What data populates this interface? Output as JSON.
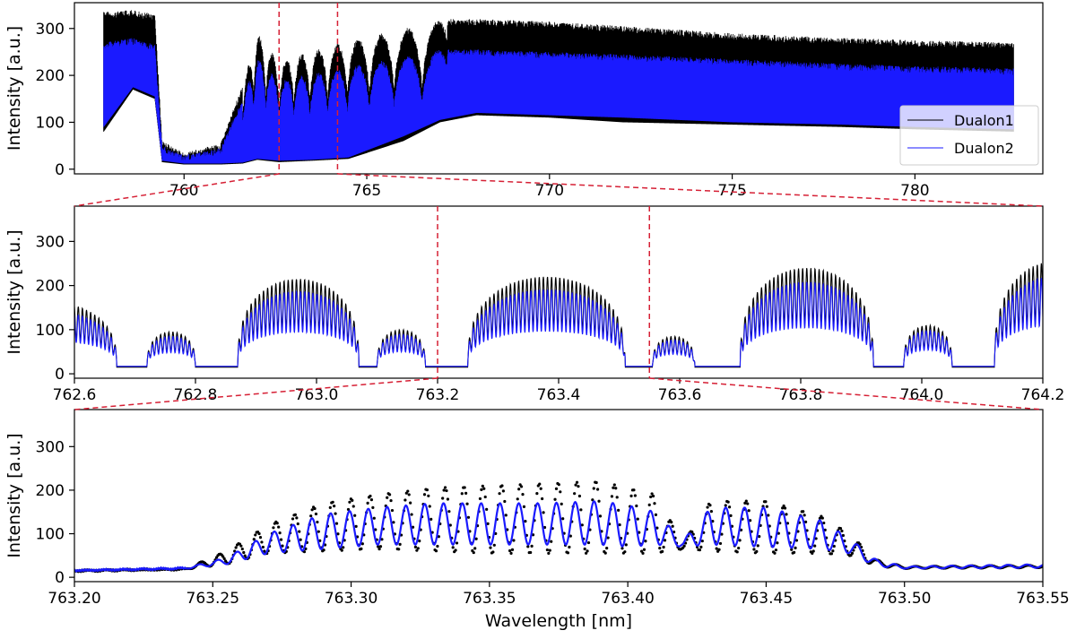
{
  "chart_data": [
    {
      "type": "line",
      "panel": "top",
      "ylabel": "Intensity [a.u.]",
      "xlabel": "",
      "xlim": [
        757.0,
        783.5
      ],
      "ylim": [
        -10,
        355
      ],
      "xticks": [
        760,
        765,
        770,
        775,
        780
      ],
      "yticks": [
        0,
        100,
        200,
        300
      ],
      "legend_position": "lower-right",
      "zoom_region": [
        762.6,
        764.2
      ],
      "series": [
        {
          "name": "Dualon1",
          "color": "#000000",
          "envelope": {
            "x": [
              757.8,
              758.6,
              759.2,
              759.4,
              760.0,
              761.0,
              761.6,
              762.0,
              762.6,
              763.5,
              764.5,
              766.0,
              767.0,
              768.0,
              770.0,
              772.0,
              775.0,
              778.0,
              780.0,
              782.7
            ],
            "upper": [
              335,
              340,
              330,
              60,
              35,
              55,
              180,
              290,
              230,
              255,
              275,
              300,
              320,
              320,
              315,
              305,
              290,
              280,
              275,
              270
            ],
            "lower": [
              80,
              170,
              150,
              15,
              10,
              10,
              12,
              20,
              15,
              18,
              22,
              60,
              100,
              115,
              110,
              100,
              95,
              90,
              85,
              80
            ]
          }
        },
        {
          "name": "Dualon2",
          "color": "#1a1aff",
          "envelope": {
            "x": [
              757.8,
              758.6,
              759.2,
              759.4,
              760.0,
              761.0,
              761.6,
              762.0,
              762.6,
              763.5,
              764.5,
              766.0,
              767.0,
              768.0,
              770.0,
              772.0,
              775.0,
              778.0,
              780.0,
              782.7
            ],
            "upper": [
              270,
              280,
              265,
              50,
              30,
              45,
              150,
              240,
              190,
              205,
              220,
              240,
              255,
              255,
              250,
              245,
              235,
              225,
              220,
              215
            ],
            "lower": [
              90,
              175,
              155,
              18,
              12,
              12,
              14,
              22,
              18,
              20,
              25,
              70,
              105,
              120,
              115,
              110,
              100,
              95,
              90,
              85
            ]
          }
        }
      ]
    },
    {
      "type": "line",
      "panel": "middle",
      "ylabel": "Intensity [a.u.]",
      "xlabel": "",
      "xlim": [
        762.6,
        764.2
      ],
      "ylim": [
        -10,
        380
      ],
      "xticks": [
        762.6,
        762.8,
        763.0,
        763.2,
        763.4,
        763.6,
        763.8,
        764.0,
        764.2
      ],
      "xtick_labels": [
        "762.6",
        "762.8",
        "763.0",
        "763.2",
        "763.4",
        "763.6",
        "763.8",
        "764.0",
        "764.2"
      ],
      "yticks": [
        0,
        100,
        200,
        300
      ],
      "zoom_region": [
        763.2,
        763.55
      ],
      "series": [
        {
          "name": "Dualon1",
          "color": "#000000",
          "bands": [
            {
              "center": 762.55,
              "halfwidth": 0.12,
              "peak": 150
            },
            {
              "center": 762.76,
              "halfwidth": 0.04,
              "peak": 80
            },
            {
              "center": 762.97,
              "halfwidth": 0.1,
              "peak": 200
            },
            {
              "center": 763.14,
              "halfwidth": 0.04,
              "peak": 85
            },
            {
              "center": 763.38,
              "halfwidth": 0.13,
              "peak": 205
            },
            {
              "center": 763.59,
              "halfwidth": 0.035,
              "peak": 70
            },
            {
              "center": 763.81,
              "halfwidth": 0.11,
              "peak": 225
            },
            {
              "center": 764.01,
              "halfwidth": 0.04,
              "peak": 95
            },
            {
              "center": 764.22,
              "halfwidth": 0.1,
              "peak": 240
            }
          ],
          "baseline": 15
        },
        {
          "name": "Dualon2",
          "color": "#1a1aff",
          "scale": 0.85,
          "baseline": 17
        }
      ]
    },
    {
      "type": "line",
      "panel": "bottom",
      "ylabel": "Intensity [a.u.]",
      "xlabel": "Wavelength [nm]",
      "xlim": [
        763.2,
        763.55
      ],
      "ylim": [
        -10,
        385
      ],
      "xticks": [
        763.2,
        763.25,
        763.3,
        763.35,
        763.4,
        763.45,
        763.5,
        763.55
      ],
      "xtick_labels": [
        "763.20",
        "763.25",
        "763.30",
        "763.35",
        "763.40",
        "763.45",
        "763.50",
        "763.55"
      ],
      "yticks": [
        0,
        100,
        200,
        300
      ],
      "fringe_period_nm": 0.0068,
      "series": [
        {
          "name": "Dualon1",
          "color": "#000000",
          "style": "dotted",
          "envelope_x": [
            763.2,
            763.24,
            763.255,
            763.27,
            763.29,
            763.31,
            763.33,
            763.35,
            763.37,
            763.39,
            763.4,
            763.41,
            763.42,
            763.43,
            763.45,
            763.47,
            763.48,
            763.49,
            763.5,
            763.55
          ],
          "envelope_peak": [
            16,
            20,
            60,
            120,
            170,
            190,
            205,
            210,
            215,
            220,
            205,
            190,
            80,
            175,
            175,
            140,
            100,
            40,
            25,
            28
          ],
          "envelope_trough": [
            14,
            18,
            30,
            55,
            60,
            65,
            60,
            55,
            55,
            55,
            55,
            55,
            65,
            60,
            55,
            55,
            50,
            25,
            20,
            22
          ]
        },
        {
          "name": "Dualon2",
          "color": "#1a1aff",
          "style": "solid",
          "envelope_x": [
            763.2,
            763.24,
            763.255,
            763.27,
            763.29,
            763.31,
            763.33,
            763.35,
            763.37,
            763.39,
            763.4,
            763.41,
            763.42,
            763.43,
            763.45,
            763.47,
            763.48,
            763.49,
            763.5,
            763.55
          ],
          "envelope_peak": [
            16,
            22,
            45,
            100,
            145,
            160,
            170,
            170,
            170,
            175,
            165,
            150,
            85,
            160,
            160,
            130,
            90,
            40,
            25,
            30
          ],
          "envelope_trough": [
            15,
            19,
            30,
            55,
            65,
            75,
            75,
            75,
            75,
            75,
            70,
            75,
            70,
            75,
            70,
            65,
            55,
            25,
            20,
            22
          ]
        }
      ]
    }
  ],
  "legend": {
    "items": [
      "Dualon1",
      "Dualon2"
    ]
  },
  "colors": {
    "dualon1": "#000000",
    "dualon2": "#1a1aff",
    "zoom_lines": "#d62035"
  }
}
